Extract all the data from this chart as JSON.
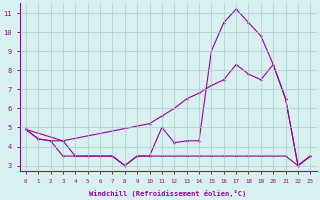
{
  "line1_x": [
    0,
    1,
    2,
    3,
    4,
    5,
    6,
    7,
    8,
    9,
    10,
    11,
    12,
    13,
    14,
    15,
    16,
    17,
    18,
    19,
    20,
    21,
    22,
    23
  ],
  "line1_y": [
    4.9,
    4.4,
    4.3,
    4.3,
    3.5,
    3.5,
    3.5,
    3.5,
    3.0,
    3.5,
    3.5,
    5.0,
    4.2,
    4.3,
    4.3,
    9.0,
    10.5,
    11.2,
    10.5,
    9.8,
    8.3,
    6.5,
    3.0,
    3.5
  ],
  "line2_x": [
    0,
    3,
    10,
    11,
    12,
    13,
    14,
    15,
    16,
    17,
    18,
    19,
    20,
    21,
    22,
    23
  ],
  "line2_y": [
    4.9,
    4.3,
    5.2,
    5.6,
    6.0,
    6.5,
    6.8,
    7.2,
    7.5,
    8.3,
    7.8,
    7.5,
    8.3,
    6.5,
    3.0,
    3.5
  ],
  "line3_x": [
    0,
    1,
    2,
    3,
    4,
    5,
    6,
    7,
    8,
    9,
    10,
    11,
    12,
    13,
    14,
    15,
    16,
    17,
    18,
    19,
    20,
    21,
    22,
    23
  ],
  "line3_y": [
    4.9,
    4.4,
    4.3,
    3.5,
    3.5,
    3.5,
    3.5,
    3.5,
    3.0,
    3.5,
    3.5,
    3.5,
    3.5,
    3.5,
    3.5,
    3.5,
    3.5,
    3.5,
    3.5,
    3.5,
    3.5,
    3.5,
    3.0,
    3.5
  ],
  "color": "#990099",
  "bg_color": "#d8f0f0",
  "grid_color": "#aacece",
  "xlabel": "Windchill (Refroidissement éolien,°C)",
  "xlim": [
    -0.5,
    23.5
  ],
  "ylim": [
    2.7,
    11.5
  ],
  "yticks": [
    3,
    4,
    5,
    6,
    7,
    8,
    9,
    10,
    11
  ],
  "xticks": [
    0,
    1,
    2,
    3,
    4,
    5,
    6,
    7,
    8,
    9,
    10,
    11,
    12,
    13,
    14,
    15,
    16,
    17,
    18,
    19,
    20,
    21,
    22,
    23
  ]
}
